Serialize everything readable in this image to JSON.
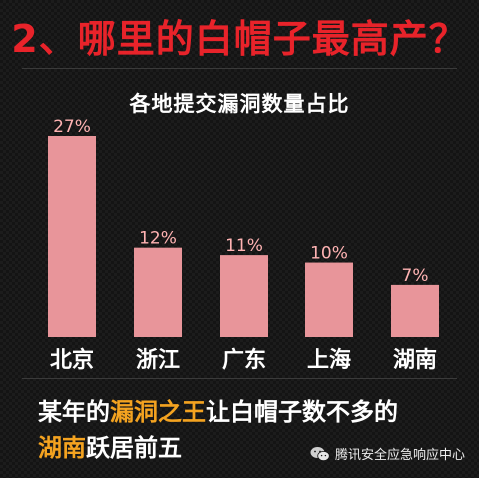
{
  "headline": "2、哪里的白帽子最高产？",
  "chart_data": {
    "type": "bar",
    "title": "各地提交漏洞数量占比",
    "categories": [
      "北京",
      "浙江",
      "广东",
      "上海",
      "湖南"
    ],
    "values": [
      27,
      12,
      11,
      10,
      7
    ],
    "value_labels": [
      "27%",
      "12%",
      "11%",
      "10%",
      "7%"
    ],
    "unit": "%",
    "ylim": [
      0,
      27
    ],
    "xlabel": "",
    "ylabel": "",
    "bar_color": "#e8959a"
  },
  "caption": {
    "line1_pre": "某年的",
    "line1_highlight": "漏洞之王",
    "line1_post": "让白帽子数不多的",
    "line2_highlight": "湖南",
    "line2_post": "跃居前五"
  },
  "brand": {
    "icon": "wechat-icon",
    "text": "腾讯安全应急响应中心"
  },
  "colors": {
    "headline": "#e8232a",
    "highlight": "#f4a320",
    "bar": "#e8959a"
  }
}
